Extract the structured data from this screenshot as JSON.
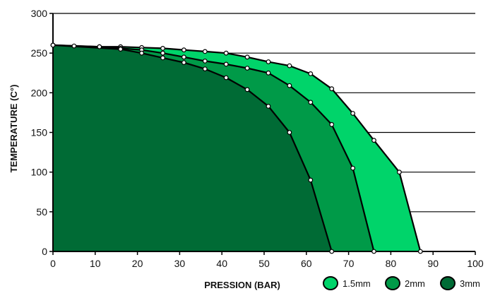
{
  "chart_data": {
    "type": "area",
    "title": "",
    "xlabel": "PRESSION (BAR)",
    "ylabel": "TEMPERATURE  (C°)",
    "xlim": [
      0,
      100
    ],
    "ylim": [
      0,
      300
    ],
    "xticks": [
      0,
      10,
      20,
      30,
      40,
      50,
      60,
      70,
      80,
      90,
      100
    ],
    "yticks": [
      0,
      50,
      100,
      150,
      200,
      250,
      300
    ],
    "grid": "horizontal",
    "legend_position": "bottom-right",
    "series": [
      {
        "name": "1.5mm",
        "color": "#00d46a",
        "points": [
          [
            0,
            260
          ],
          [
            5,
            259
          ],
          [
            11,
            258
          ],
          [
            16,
            258
          ],
          [
            21,
            257
          ],
          [
            26,
            256
          ],
          [
            31,
            254
          ],
          [
            36,
            252
          ],
          [
            41,
            250
          ],
          [
            46,
            245
          ],
          [
            51,
            239
          ],
          [
            56,
            234
          ],
          [
            61,
            224
          ],
          [
            66,
            205
          ],
          [
            71,
            174
          ],
          [
            76,
            140
          ],
          [
            82,
            100
          ],
          [
            87,
            0
          ]
        ]
      },
      {
        "name": "2mm",
        "color": "#009a48",
        "points": [
          [
            0,
            260
          ],
          [
            11,
            258
          ],
          [
            16,
            256
          ],
          [
            21,
            254
          ],
          [
            26,
            250
          ],
          [
            31,
            245
          ],
          [
            36,
            240
          ],
          [
            41,
            236
          ],
          [
            46,
            231
          ],
          [
            51,
            225
          ],
          [
            56,
            209
          ],
          [
            61,
            188
          ],
          [
            66,
            160
          ],
          [
            71,
            105
          ],
          [
            76,
            0
          ]
        ]
      },
      {
        "name": "3mm",
        "color": "#006b35",
        "points": [
          [
            0,
            260
          ],
          [
            16,
            255
          ],
          [
            21,
            250
          ],
          [
            26,
            244
          ],
          [
            31,
            238
          ],
          [
            36,
            230
          ],
          [
            41,
            219
          ],
          [
            46,
            204
          ],
          [
            51,
            183
          ],
          [
            56,
            150
          ],
          [
            61,
            90
          ],
          [
            66,
            0
          ]
        ]
      }
    ]
  }
}
